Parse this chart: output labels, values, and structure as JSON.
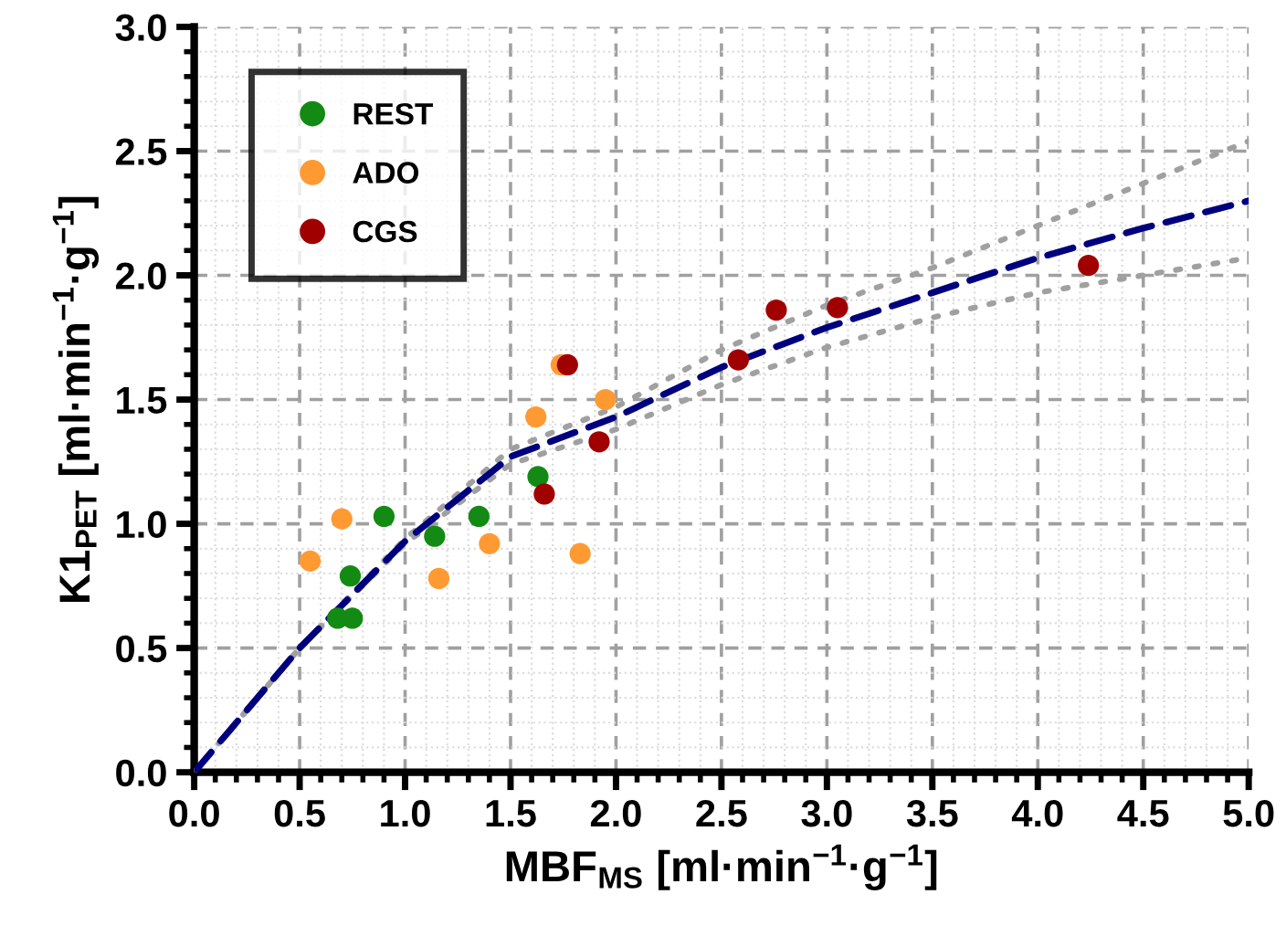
{
  "chart_data": {
    "type": "scatter",
    "xlabel": "MBF$_{MS}$ [ml·min$^{−1}$·g$^{−1}$]",
    "ylabel": "K1$_{PET}$ [ml·min$^{−1}$·g$^{−1}$]",
    "xlim": [
      0,
      5
    ],
    "ylim": [
      0,
      3
    ],
    "xticks": [
      {
        "value": 0,
        "label": "0.0"
      },
      {
        "value": 0.5,
        "label": "0.5"
      },
      {
        "value": 1,
        "label": "1.0"
      },
      {
        "value": 1.5,
        "label": "1.5"
      },
      {
        "value": 2,
        "label": "2.0"
      },
      {
        "value": 2.5,
        "label": "2.5"
      },
      {
        "value": 3,
        "label": "3.0"
      },
      {
        "value": 3.5,
        "label": "3.5"
      },
      {
        "value": 4,
        "label": "4.0"
      },
      {
        "value": 4.5,
        "label": "4.5"
      },
      {
        "value": 5,
        "label": "5.0"
      }
    ],
    "yticks": [
      {
        "value": 0,
        "label": "0.0"
      },
      {
        "value": 0.5,
        "label": "0.5"
      },
      {
        "value": 1,
        "label": "1.0"
      },
      {
        "value": 1.5,
        "label": "1.5"
      },
      {
        "value": 2,
        "label": "2.0"
      },
      {
        "value": 2.5,
        "label": "2.5"
      },
      {
        "value": 3,
        "label": "3.0"
      }
    ],
    "grid": true,
    "legend": "top left",
    "marker": "circle",
    "series": [
      {
        "type": "line",
        "marker": "none",
        "line_style": "dotted",
        "color": "#a0a0a0",
        "x": [
          0,
          0.5,
          1,
          1.5,
          2,
          2.5,
          3,
          3.5,
          4,
          4.5,
          5
        ],
        "values": [
          0,
          0.5,
          0.94,
          1.3,
          1.47,
          1.7,
          1.88,
          2.03,
          2.2,
          2.37,
          2.54
        ]
      },
      {
        "type": "line",
        "marker": "none",
        "line_style": "dotted",
        "color": "#a0a0a0",
        "x": [
          0,
          0.5,
          1,
          1.5,
          2,
          2.5,
          3,
          3.5,
          4,
          4.5,
          5
        ],
        "values": [
          0,
          0.5,
          0.92,
          1.24,
          1.38,
          1.56,
          1.71,
          1.83,
          1.93,
          2.0,
          2.07
        ]
      },
      {
        "type": "line",
        "marker": "none",
        "line_style": "dashed",
        "color": "#00007f",
        "x": [
          0,
          0.5,
          1,
          1.5,
          2,
          2.5,
          3,
          3.5,
          4,
          4.5,
          5
        ],
        "values": [
          0,
          0.5,
          0.93,
          1.27,
          1.43,
          1.63,
          1.79,
          1.93,
          2.07,
          2.19,
          2.3
        ]
      },
      {
        "name": "REST",
        "color": "#138a13",
        "x": [
          0.68,
          0.75,
          0.74,
          0.9,
          1.14,
          1.35,
          1.63
        ],
        "values": [
          0.62,
          0.62,
          0.79,
          1.03,
          0.95,
          1.03,
          1.19
        ]
      },
      {
        "name": "ADO",
        "color": "#ff9a33",
        "x": [
          0.55,
          0.7,
          1.16,
          1.4,
          1.62,
          1.74,
          1.83,
          1.95
        ],
        "values": [
          0.85,
          1.02,
          0.78,
          0.92,
          1.43,
          1.64,
          0.88,
          1.5
        ]
      },
      {
        "name": "CGS",
        "color": "#a00000",
        "x": [
          1.77,
          1.66,
          1.92,
          2.58,
          2.76,
          3.05,
          4.24
        ],
        "values": [
          1.64,
          1.12,
          1.33,
          1.66,
          1.86,
          1.87,
          2.04
        ]
      }
    ]
  }
}
